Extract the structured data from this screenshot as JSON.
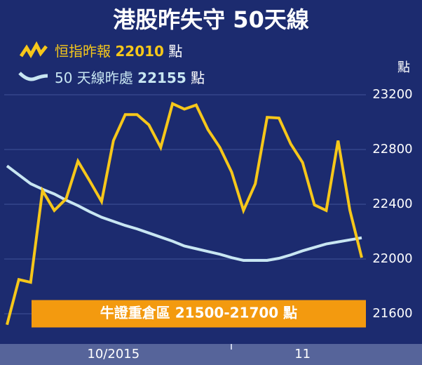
{
  "chart_data": {
    "type": "line",
    "title": "港股昨失守 50天線",
    "y_unit": "點",
    "categories": [
      null,
      null,
      null,
      null,
      null,
      null,
      null,
      null,
      null,
      "10/2015",
      null,
      null,
      null,
      null,
      null,
      null,
      null,
      null,
      null,
      null,
      null,
      null,
      null,
      null,
      null,
      "11",
      null,
      null,
      null,
      null,
      null
    ],
    "series": [
      {
        "name": "恒指昨報",
        "latest": 22010,
        "color": "#f6c71a",
        "values": [
          21520,
          21850,
          21830,
          22500,
          22355,
          22440,
          22715,
          22570,
          22420,
          22865,
          23055,
          23055,
          22980,
          22815,
          23135,
          23095,
          23125,
          22945,
          22815,
          22635,
          22355,
          22550,
          23035,
          23030,
          22840,
          22705,
          22395,
          22355,
          22865,
          22355,
          22010
        ]
      },
      {
        "name": "50 天線昨處",
        "latest": 22155,
        "color": "#c8e6f2",
        "values": [
          22680,
          22615,
          22550,
          22510,
          22475,
          22430,
          22390,
          22345,
          22305,
          22275,
          22245,
          22220,
          22190,
          22160,
          22130,
          22095,
          22075,
          22055,
          22035,
          22010,
          21990,
          21990,
          21990,
          22005,
          22030,
          22060,
          22085,
          22110,
          22125,
          22140,
          22155
        ]
      }
    ],
    "band": {
      "label": "牛證重倉區 21500-21700 點",
      "from": 21500,
      "to": 21700,
      "color": "#f39a0f"
    },
    "ylim": [
      21400,
      23500
    ],
    "yticks": [
      21600,
      22000,
      22400,
      22800,
      23200
    ],
    "grid": true
  }
}
